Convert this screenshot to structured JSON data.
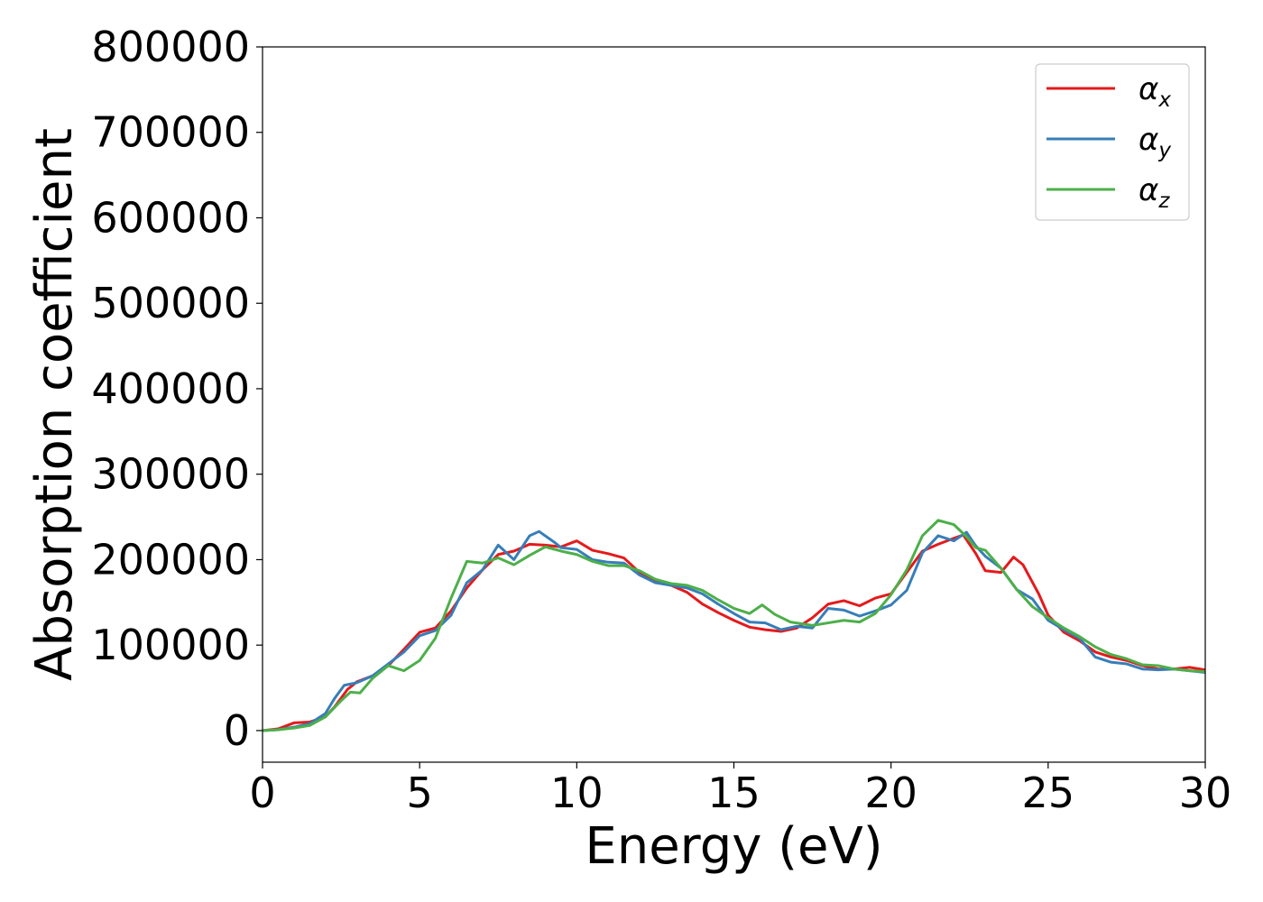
{
  "chart_data": {
    "type": "line",
    "title": "",
    "xlabel": "Energy (eV)",
    "ylabel": "Absorption coefficient",
    "xlim": [
      0,
      30
    ],
    "ylim": [
      -37000,
      800000
    ],
    "x_ticks": [
      "0",
      "5",
      "10",
      "15",
      "20",
      "25",
      "30"
    ],
    "y_ticks": [
      "0",
      "100000",
      "200000",
      "300000",
      "400000",
      "500000",
      "600000",
      "700000",
      "800000"
    ],
    "grid": false,
    "legend_position": "top-right",
    "series": [
      {
        "name": "α",
        "subscript": "x",
        "color": "#e41a1c",
        "points": [
          [
            0,
            0
          ],
          [
            0.5,
            2000
          ],
          [
            1,
            9000
          ],
          [
            1.5,
            10000
          ],
          [
            2,
            16000
          ],
          [
            2.3,
            28000
          ],
          [
            2.7,
            48000
          ],
          [
            3,
            57000
          ],
          [
            3.5,
            64000
          ],
          [
            4,
            76000
          ],
          [
            4.5,
            95000
          ],
          [
            5,
            115000
          ],
          [
            5.5,
            120000
          ],
          [
            6,
            140000
          ],
          [
            6.5,
            167000
          ],
          [
            7,
            188000
          ],
          [
            7.5,
            206000
          ],
          [
            8,
            210000
          ],
          [
            8.5,
            218000
          ],
          [
            9,
            217000
          ],
          [
            9.5,
            215000
          ],
          [
            10,
            222000
          ],
          [
            10.5,
            211000
          ],
          [
            11,
            207000
          ],
          [
            11.5,
            202000
          ],
          [
            12,
            185000
          ],
          [
            12.5,
            175000
          ],
          [
            13,
            170000
          ],
          [
            13.5,
            162000
          ],
          [
            14,
            148000
          ],
          [
            14.5,
            138000
          ],
          [
            15,
            129000
          ],
          [
            15.5,
            121000
          ],
          [
            16,
            118000
          ],
          [
            16.5,
            116000
          ],
          [
            17,
            120000
          ],
          [
            17.5,
            132000
          ],
          [
            18,
            148000
          ],
          [
            18.5,
            152000
          ],
          [
            19,
            146000
          ],
          [
            19.5,
            155000
          ],
          [
            20,
            160000
          ],
          [
            20.5,
            185000
          ],
          [
            21,
            210000
          ],
          [
            21.5,
            218000
          ],
          [
            22,
            225000
          ],
          [
            22.3,
            229000
          ],
          [
            22.7,
            207000
          ],
          [
            23,
            187000
          ],
          [
            23.5,
            185000
          ],
          [
            23.9,
            203000
          ],
          [
            24.2,
            194000
          ],
          [
            24.7,
            160000
          ],
          [
            25,
            135000
          ],
          [
            25.5,
            115000
          ],
          [
            26,
            105000
          ],
          [
            26.5,
            92000
          ],
          [
            27,
            86000
          ],
          [
            27.5,
            82000
          ],
          [
            28,
            76000
          ],
          [
            28.5,
            72000
          ],
          [
            29,
            72000
          ],
          [
            29.5,
            74000
          ],
          [
            30,
            71000
          ]
        ]
      },
      {
        "name": "α",
        "subscript": "y",
        "color": "#377eb8",
        "points": [
          [
            0,
            0
          ],
          [
            0.5,
            1000
          ],
          [
            1,
            4000
          ],
          [
            1.5,
            8000
          ],
          [
            2,
            20000
          ],
          [
            2.3,
            38000
          ],
          [
            2.6,
            53000
          ],
          [
            3,
            56000
          ],
          [
            3.5,
            64000
          ],
          [
            4,
            78000
          ],
          [
            4.5,
            92000
          ],
          [
            5,
            111000
          ],
          [
            5.5,
            117000
          ],
          [
            6,
            135000
          ],
          [
            6.5,
            173000
          ],
          [
            7,
            188000
          ],
          [
            7.5,
            217000
          ],
          [
            8,
            200000
          ],
          [
            8.5,
            228000
          ],
          [
            8.8,
            233000
          ],
          [
            9.3,
            220000
          ],
          [
            9.5,
            214000
          ],
          [
            10,
            212000
          ],
          [
            10.5,
            200000
          ],
          [
            11,
            197000
          ],
          [
            11.5,
            196000
          ],
          [
            12,
            182000
          ],
          [
            12.5,
            173000
          ],
          [
            13,
            170000
          ],
          [
            13.5,
            167000
          ],
          [
            14,
            160000
          ],
          [
            14.5,
            148000
          ],
          [
            15,
            137000
          ],
          [
            15.5,
            127000
          ],
          [
            16,
            126000
          ],
          [
            16.5,
            118000
          ],
          [
            17,
            122000
          ],
          [
            17.5,
            120000
          ],
          [
            18,
            143000
          ],
          [
            18.5,
            141000
          ],
          [
            19,
            134000
          ],
          [
            19.5,
            140000
          ],
          [
            20,
            147000
          ],
          [
            20.5,
            164000
          ],
          [
            21,
            208000
          ],
          [
            21.5,
            228000
          ],
          [
            22,
            222000
          ],
          [
            22.4,
            232000
          ],
          [
            22.7,
            216000
          ],
          [
            23,
            204000
          ],
          [
            23.5,
            190000
          ],
          [
            24,
            165000
          ],
          [
            24.5,
            154000
          ],
          [
            25,
            129000
          ],
          [
            25.5,
            118000
          ],
          [
            26,
            108000
          ],
          [
            26.5,
            86000
          ],
          [
            27,
            80000
          ],
          [
            27.5,
            78000
          ],
          [
            28,
            72000
          ],
          [
            28.5,
            71000
          ],
          [
            29,
            72000
          ],
          [
            29.5,
            70000
          ],
          [
            30,
            68000
          ]
        ]
      },
      {
        "name": "α",
        "subscript": "z",
        "color": "#4daf4a",
        "points": [
          [
            0,
            0
          ],
          [
            0.5,
            1000
          ],
          [
            1,
            3000
          ],
          [
            1.5,
            6000
          ],
          [
            2,
            16000
          ],
          [
            2.5,
            35000
          ],
          [
            2.8,
            45000
          ],
          [
            3.1,
            44000
          ],
          [
            3.5,
            61000
          ],
          [
            4,
            76000
          ],
          [
            4.5,
            70000
          ],
          [
            5,
            82000
          ],
          [
            5.5,
            108000
          ],
          [
            6,
            155000
          ],
          [
            6.5,
            198000
          ],
          [
            7,
            196000
          ],
          [
            7.5,
            202000
          ],
          [
            8,
            194000
          ],
          [
            8.5,
            205000
          ],
          [
            9,
            215000
          ],
          [
            9.5,
            210000
          ],
          [
            10,
            206000
          ],
          [
            10.5,
            198000
          ],
          [
            11,
            193000
          ],
          [
            11.5,
            193000
          ],
          [
            12,
            187000
          ],
          [
            12.5,
            177000
          ],
          [
            13,
            172000
          ],
          [
            13.5,
            170000
          ],
          [
            14,
            164000
          ],
          [
            14.5,
            153000
          ],
          [
            15,
            143000
          ],
          [
            15.5,
            137000
          ],
          [
            15.9,
            147000
          ],
          [
            16.3,
            136000
          ],
          [
            16.8,
            127000
          ],
          [
            17.5,
            123000
          ],
          [
            18,
            126000
          ],
          [
            18.5,
            129000
          ],
          [
            19,
            127000
          ],
          [
            19.5,
            137000
          ],
          [
            20,
            159000
          ],
          [
            20.5,
            188000
          ],
          [
            21,
            228000
          ],
          [
            21.5,
            246000
          ],
          [
            22,
            241000
          ],
          [
            22.4,
            227000
          ],
          [
            22.7,
            214000
          ],
          [
            23,
            211000
          ],
          [
            23.5,
            190000
          ],
          [
            24,
            165000
          ],
          [
            24.5,
            145000
          ],
          [
            25,
            132000
          ],
          [
            25.5,
            120000
          ],
          [
            26,
            110000
          ],
          [
            26.5,
            98000
          ],
          [
            27,
            89000
          ],
          [
            27.5,
            84000
          ],
          [
            28,
            77000
          ],
          [
            28.5,
            76000
          ],
          [
            29,
            72000
          ],
          [
            29.5,
            70000
          ],
          [
            30,
            69000
          ]
        ]
      }
    ]
  }
}
